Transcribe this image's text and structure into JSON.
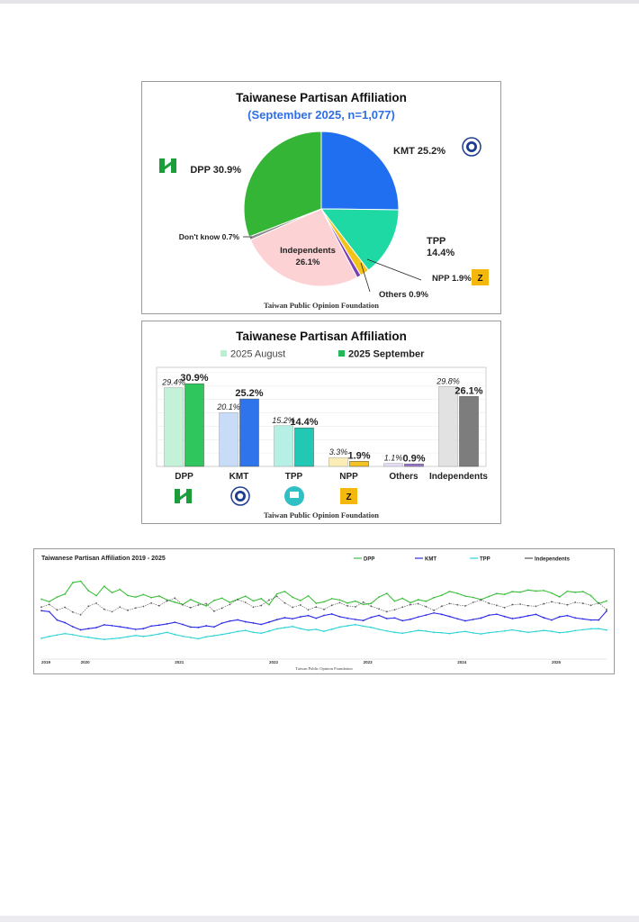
{
  "pie": {
    "title": "Taiwanese Partisan Affiliation",
    "subtitle": "(September 2025, n=1,077)",
    "source": "Taiwan Public Opinion Foundation",
    "chart_data": {
      "type": "pie",
      "title": "Taiwanese Partisan Affiliation",
      "subtitle": "(September 2025, n=1,077)",
      "slices": [
        {
          "label": "KMT",
          "value": 25.2,
          "color": "#1f6ff0",
          "display": "KMT 25.2%"
        },
        {
          "label": "TPP",
          "value": 14.4,
          "color": "#1fd9a4",
          "display": "TPP 14.4%"
        },
        {
          "label": "NPP",
          "value": 1.9,
          "color": "#f2c318",
          "display": "NPP 1.9%"
        },
        {
          "label": "Others",
          "value": 0.9,
          "color": "#7b3fb8",
          "display": "Others 0.9%"
        },
        {
          "label": "Independents",
          "value": 26.1,
          "color": "#fcd2d4",
          "display": "Independents 26.1%"
        },
        {
          "label": "Don't know",
          "value": 0.7,
          "color": "#8a8a8a",
          "display": "Don't know 0.7%"
        },
        {
          "label": "DPP",
          "value": 30.9,
          "color": "#34b535",
          "display": "DPP 30.9%"
        }
      ]
    }
  },
  "bars": {
    "title": "Taiwanese Partisan Affiliation",
    "source": "Taiwan Public Opinion Foundation",
    "legend": [
      "2025 August",
      "2025 September"
    ],
    "chart_data": {
      "type": "bar",
      "title": "Taiwanese Partisan Affiliation",
      "categories": [
        "DPP",
        "KMT",
        "TPP",
        "NPP",
        "Others",
        "Independents"
      ],
      "ylim": [
        0,
        37
      ],
      "series": [
        {
          "name": "2025 August",
          "values": [
            29.4,
            20.1,
            15.2,
            3.3,
            1.1,
            29.8
          ],
          "labels": [
            "29.4%",
            "20.1%",
            "15.2%",
            "3.3%",
            "1.1%",
            "29.8%"
          ]
        },
        {
          "name": "2025 September",
          "values": [
            30.9,
            25.2,
            14.4,
            1.9,
            0.9,
            26.1
          ],
          "labels": [
            "30.9%",
            "25.2%",
            "14.4%",
            "1.9%",
            "0.9%",
            "26.1%"
          ]
        }
      ],
      "colors": {
        "aug": [
          "#c3f2d8",
          "#c9dcf7",
          "#b6efe4",
          "#fbedb6",
          "#e6dbf4",
          "#e2e2e2"
        ],
        "sep": [
          "#2fc65e",
          "#2f74ea",
          "#21c9b4",
          "#f3c324",
          "#9e79d6",
          "#7d7d7d"
        ]
      }
    }
  },
  "trend": {
    "title": "Taiwanese Partisan Affiliation 2019 - 2025",
    "source": "Taiwan Public Opinion Foundation",
    "chart_data": {
      "type": "line",
      "title": "Taiwanese Partisan Affiliation 2019 - 2025",
      "years": [
        "2019",
        "2020",
        "2021",
        "2022",
        "2023",
        "2024",
        "2025"
      ],
      "ylim": [
        0,
        50
      ],
      "series": [
        {
          "name": "DPP",
          "color": "#3cbf3c",
          "values": [
            31.9,
            30.5,
            33.1,
            34.8,
            41.3,
            42.1,
            36.7,
            33.9,
            39.2,
            35.6,
            37.4,
            34.0,
            33.1,
            34.5,
            32.8,
            33.7,
            31.5,
            30.2,
            28.9,
            31.7,
            29.8,
            28.1,
            31.2,
            32.5,
            30.1,
            31.8,
            33.6,
            30.9,
            32.2,
            28.7,
            34.9,
            36.3,
            33.0,
            31.1,
            33.8,
            29.6,
            30.4,
            32.2,
            31.5,
            29.7,
            30.8,
            28.9,
            29.5,
            33.1,
            35.2,
            30.8,
            32.4,
            29.9,
            31.6,
            30.7,
            32.8,
            34.1,
            36.3,
            35.2,
            33.6,
            32.9,
            31.7,
            33.4,
            35.1,
            34.6,
            36.2,
            35.9,
            37.1,
            36.5,
            36.8,
            35.4,
            33.2,
            36.4,
            35.8,
            36.2,
            33.9,
            29.4,
            30.9
          ]
        },
        {
          "name": "KMT",
          "color": "#2a2ae6",
          "values": [
            25.4,
            24.8,
            20.1,
            18.6,
            16.3,
            14.5,
            15.2,
            15.8,
            17.4,
            16.9,
            16.3,
            15.6,
            14.8,
            15.2,
            16.7,
            17.2,
            17.9,
            18.8,
            17.6,
            16.1,
            15.9,
            16.8,
            16.2,
            18.3,
            19.5,
            20.2,
            19.1,
            18.4,
            17.6,
            18.9,
            20.3,
            21.4,
            20.8,
            21.9,
            22.6,
            21.1,
            22.7,
            23.5,
            22.0,
            21.1,
            20.4,
            19.8,
            21.6,
            22.7,
            20.9,
            21.3,
            19.7,
            20.5,
            21.8,
            22.9,
            24.1,
            23.3,
            22.1,
            20.8,
            19.6,
            20.4,
            21.2,
            22.8,
            23.4,
            22.1,
            20.9,
            21.6,
            22.5,
            23.3,
            21.4,
            20.1,
            21.9,
            22.6,
            21.3,
            20.7,
            20.1,
            20.1,
            25.2
          ]
        },
        {
          "name": "TPP",
          "color": "#2fd3d6",
          "values": [
            9.7,
            10.8,
            11.6,
            12.4,
            11.8,
            10.9,
            10.3,
            9.6,
            9.1,
            9.5,
            9.9,
            10.6,
            11.3,
            10.8,
            11.4,
            12.2,
            13.1,
            11.9,
            10.9,
            10.2,
            9.5,
            10.6,
            11.2,
            11.9,
            12.7,
            13.6,
            14.2,
            13.1,
            12.6,
            13.8,
            15.1,
            15.8,
            16.4,
            15.2,
            14.3,
            14.8,
            13.7,
            14.9,
            16.1,
            16.8,
            17.5,
            16.6,
            15.9,
            14.8,
            13.9,
            13.1,
            12.6,
            13.4,
            14.2,
            13.8,
            13.1,
            12.9,
            12.4,
            13.1,
            13.6,
            12.8,
            12.2,
            12.9,
            13.4,
            13.9,
            14.5,
            13.8,
            13.1,
            13.6,
            14.2,
            13.7,
            12.9,
            13.3,
            14.1,
            14.6,
            15.1,
            15.2,
            14.4
          ]
        },
        {
          "name": "Independents",
          "color": "#555555",
          "values": [
            27.4,
            28.9,
            25.8,
            27.3,
            24.6,
            23.1,
            27.9,
            29.6,
            26.2,
            24.8,
            27.4,
            25.6,
            26.9,
            27.8,
            29.7,
            28.2,
            30.9,
            32.5,
            28.7,
            27.1,
            28.6,
            29.3,
            25.1,
            26.8,
            28.9,
            31.7,
            30.1,
            27.4,
            28.3,
            31.4,
            33.5,
            29.8,
            27.3,
            28.6,
            25.9,
            27.5,
            26.1,
            28.4,
            29.9,
            28.1,
            27.6,
            30.2,
            27.9,
            26.4,
            24.8,
            25.9,
            27.4,
            28.8,
            29.3,
            27.7,
            25.6,
            27.9,
            29.4,
            28.7,
            28.1,
            30.1,
            31.4,
            29.6,
            28.4,
            27.1,
            28.8,
            29.1,
            28.2,
            27.9,
            29.3,
            30.4,
            29.6,
            28.7,
            30.1,
            29.5,
            28.4,
            29.8,
            26.1
          ]
        }
      ]
    }
  }
}
